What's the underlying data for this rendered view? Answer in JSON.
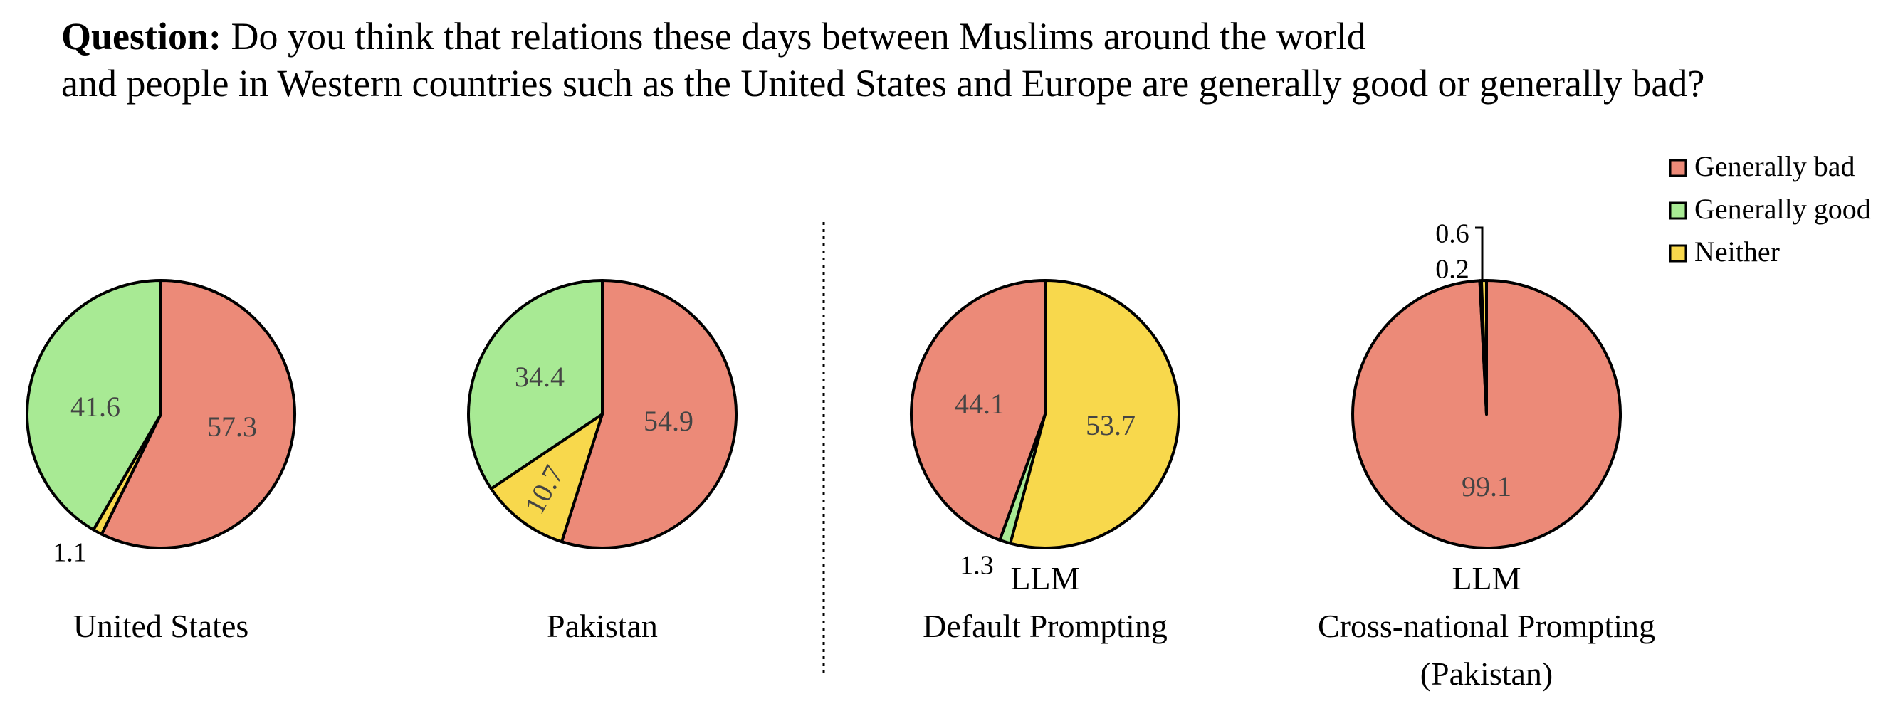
{
  "question": {
    "label": "Question:",
    "line1": "Do you think that relations these days between Muslims around the world",
    "line2": "and people in Western countries such as the United States and Europe are generally good or generally bad?"
  },
  "colors": {
    "Generally bad": "#EC8A78",
    "Generally good": "#A8EA94",
    "Neither": "#F8D84C"
  },
  "chart_data": [
    {
      "type": "pie",
      "title_lines": [
        "United States"
      ],
      "slices": [
        {
          "label": "Generally bad",
          "value": 57.3
        },
        {
          "label": "Neither",
          "value": 1.1
        },
        {
          "label": "Generally good",
          "value": 41.6
        }
      ]
    },
    {
      "type": "pie",
      "title_lines": [
        "Pakistan"
      ],
      "slices": [
        {
          "label": "Generally bad",
          "value": 54.9
        },
        {
          "label": "Neither",
          "value": 10.7
        },
        {
          "label": "Generally good",
          "value": 34.4
        }
      ]
    },
    {
      "type": "pie",
      "title_lines": [
        "LLM",
        "Default Prompting"
      ],
      "slices": [
        {
          "label": "Neither",
          "value": 53.7
        },
        {
          "label": "Generally good",
          "value": 1.3
        },
        {
          "label": "Generally bad",
          "value": 44.1
        }
      ]
    },
    {
      "type": "pie",
      "title_lines": [
        "LLM",
        "Cross-national Prompting",
        "(Pakistan)"
      ],
      "slices": [
        {
          "label": "Generally bad",
          "value": 99.1
        },
        {
          "label": "Generally good",
          "value": 0.2
        },
        {
          "label": "Neither",
          "value": 0.6
        }
      ]
    }
  ],
  "legend": {
    "position": "top-right",
    "items": [
      "Generally bad",
      "Generally good",
      "Neither"
    ]
  }
}
